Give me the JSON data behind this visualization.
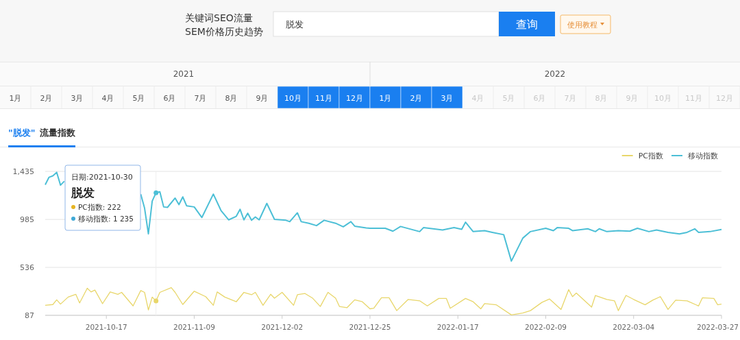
{
  "chart_data": {
    "type": "line",
    "title": "\"脱发\"",
    "subtitle": "流量指数",
    "xlim": [
      "2021-10-01",
      "2022-03-27"
    ],
    "xticks": [
      "2021-10-17",
      "2021-11-09",
      "2021-12-02",
      "2021-12-25",
      "2022-01-17",
      "2022-02-09",
      "2022-03-04",
      "2022-03-27"
    ],
    "ylim": [
      87,
      1435
    ],
    "yticks": [
      87,
      536,
      985,
      {
        "value": 1435,
        "label": "1,435"
      }
    ],
    "grid": "y",
    "legend": "top right",
    "ref_lines": [
      {
        "axis": "x",
        "value": "2021-10-30",
        "color": "#eeeeee"
      }
    ],
    "series": [
      {
        "name": "PC指数",
        "color": "#e8d66a",
        "x": [
          "2021-10-01",
          "2021-10-03",
          "2021-10-04",
          "2021-10-05",
          "2021-10-07",
          "2021-10-09",
          "2021-10-10",
          "2021-10-12",
          "2021-10-13",
          "2021-10-14",
          "2021-10-16",
          "2021-10-18",
          "2021-10-20",
          "2021-10-21",
          "2021-10-24",
          "2021-10-26",
          "2021-10-27",
          "2021-10-28",
          "2021-10-29",
          "2021-10-30",
          "2021-10-31",
          "2021-11-03",
          "2021-11-04",
          "2021-11-06",
          "2021-11-09",
          "2021-11-12",
          "2021-11-14",
          "2021-11-15",
          "2021-11-17",
          "2021-11-20",
          "2021-11-22",
          "2021-11-24",
          "2021-11-25",
          "2021-11-27",
          "2021-11-29",
          "2021-11-30",
          "2021-12-02",
          "2021-12-05",
          "2021-12-06",
          "2021-12-08",
          "2021-12-10",
          "2021-12-12",
          "2021-12-14",
          "2021-12-16",
          "2021-12-17",
          "2021-12-19",
          "2021-12-21",
          "2021-12-23",
          "2021-12-25",
          "2021-12-26",
          "2021-12-28",
          "2021-12-30",
          "2022-01-01",
          "2022-01-04",
          "2022-01-07",
          "2022-01-09",
          "2022-01-12",
          "2022-01-14",
          "2022-01-15",
          "2022-01-19",
          "2022-01-21",
          "2022-01-23",
          "2022-01-24",
          "2022-01-27",
          "2022-01-31",
          "2022-02-03",
          "2022-02-05",
          "2022-02-08",
          "2022-02-10",
          "2022-02-11",
          "2022-02-13",
          "2022-02-15",
          "2022-02-16",
          "2022-02-17",
          "2022-02-21",
          "2022-02-22",
          "2022-02-25",
          "2022-02-27",
          "2022-02-28",
          "2022-03-02",
          "2022-03-04",
          "2022-03-07",
          "2022-03-09",
          "2022-03-11",
          "2022-03-13",
          "2022-03-15",
          "2022-03-18",
          "2022-03-21",
          "2022-03-22",
          "2022-03-25",
          "2022-03-26",
          "2022-03-27"
        ],
        "values": [
          181,
          188,
          232,
          192,
          258,
          284,
          203,
          341,
          306,
          324,
          196,
          306,
          284,
          302,
          175,
          319,
          302,
          137,
          258,
          222,
          302,
          346,
          302,
          188,
          313,
          262,
          181,
          306,
          258,
          214,
          302,
          280,
          302,
          181,
          284,
          247,
          302,
          181,
          280,
          291,
          247,
          170,
          302,
          247,
          170,
          159,
          232,
          214,
          148,
          153,
          251,
          251,
          131,
          236,
          223,
          175,
          245,
          245,
          153,
          245,
          214,
          148,
          197,
          186,
          91,
          109,
          131,
          208,
          240,
          208,
          142,
          328,
          262,
          295,
          164,
          273,
          236,
          223,
          131,
          273,
          236,
          186,
          229,
          262,
          142,
          229,
          223,
          175,
          251,
          245,
          186,
          192
        ]
      },
      {
        "name": "移动指数",
        "color": "#4cbfd6",
        "x": [
          "2021-10-01",
          "2021-10-02",
          "2021-10-03",
          "2021-10-04",
          "2021-10-05",
          "2021-10-06",
          "2021-10-07",
          "2021-10-25",
          "2021-10-26",
          "2021-10-27",
          "2021-10-28",
          "2021-10-29",
          "2021-10-30",
          "2021-10-31",
          "2021-11-01",
          "2021-11-02",
          "2021-11-04",
          "2021-11-05",
          "2021-11-06",
          "2021-11-07",
          "2021-11-09",
          "2021-11-11",
          "2021-11-14",
          "2021-11-16",
          "2021-11-18",
          "2021-11-20",
          "2021-11-21",
          "2021-11-22",
          "2021-11-23",
          "2021-11-24",
          "2021-11-25",
          "2021-11-26",
          "2021-11-28",
          "2021-11-30",
          "2021-12-03",
          "2021-12-04",
          "2021-12-06",
          "2021-12-07",
          "2021-12-09",
          "2021-12-11",
          "2021-12-13",
          "2021-12-16",
          "2021-12-18",
          "2021-12-20",
          "2021-12-21",
          "2021-12-24",
          "2021-12-25",
          "2021-12-29",
          "2021-12-31",
          "2022-01-02",
          "2022-01-07",
          "2022-01-08",
          "2022-01-13",
          "2022-01-16",
          "2022-01-18",
          "2022-01-19",
          "2022-01-21",
          "2022-01-24",
          "2022-01-26",
          "2022-01-29",
          "2022-01-31",
          "2022-02-03",
          "2022-02-05",
          "2022-02-09",
          "2022-02-11",
          "2022-02-12",
          "2022-02-15",
          "2022-02-16",
          "2022-02-20",
          "2022-02-22",
          "2022-02-23",
          "2022-02-25",
          "2022-02-28",
          "2022-03-03",
          "2022-03-05",
          "2022-03-08",
          "2022-03-10",
          "2022-03-13",
          "2022-03-16",
          "2022-03-18",
          "2022-03-20",
          "2022-03-21",
          "2022-03-24",
          "2022-03-27"
        ],
        "values": [
          1310,
          1380,
          1393,
          1426,
          1306,
          1343,
          null,
          null,
          1222,
          1091,
          850,
          1157,
          1235,
          1244,
          1102,
          1098,
          1185,
          1124,
          1196,
          1113,
          1102,
          1003,
          1222,
          1069,
          981,
          1014,
          1080,
          981,
          1043,
          977,
          1008,
          981,
          1135,
          986,
          977,
          964,
          1047,
          964,
          949,
          927,
          977,
          949,
          916,
          964,
          922,
          905,
          902,
          902,
          875,
          919,
          871,
          908,
          886,
          908,
          893,
          959,
          871,
          880,
          864,
          842,
          595,
          810,
          871,
          902,
          880,
          908,
          902,
          880,
          897,
          871,
          897,
          871,
          880,
          875,
          902,
          871,
          886,
          864,
          849,
          864,
          897,
          864,
          871,
          891
        ]
      }
    ],
    "annotations": [
      "关键词SEO流量",
      "SEM价格历史趋势",
      "脱发",
      "查询",
      "使用教程",
      "2021",
      "2022",
      "1月",
      "2月",
      "3月",
      "4月",
      "5月",
      "6月",
      "7月",
      "8月",
      "9月",
      "10月",
      "11月",
      "12月",
      "1月",
      "2月",
      "3月",
      "4月",
      "5月",
      "6月",
      "7月",
      "8月",
      "9月",
      "10月",
      "11月",
      "12月",
      "日期:2021-10-30",
      "脱发",
      "PC指数: 222",
      "移动指数: 1 235"
    ]
  }
}
